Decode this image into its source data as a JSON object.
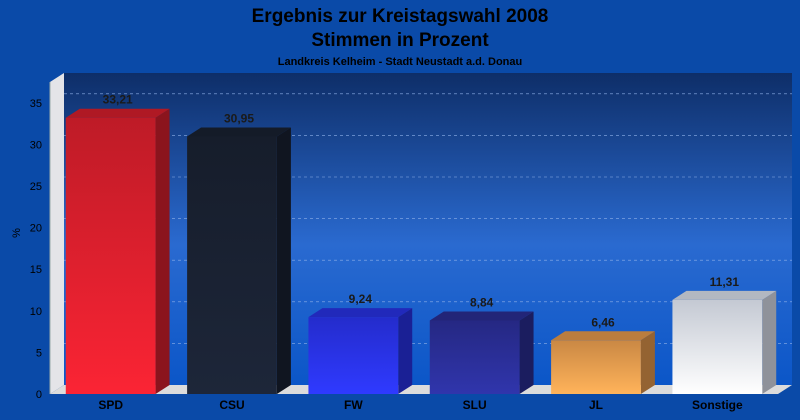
{
  "chart_data": {
    "type": "bar",
    "title": "Ergebnis zur Kreistagswahl 2008",
    "subtitle_line2": "Stimmen in Prozent",
    "subtitle": "Landkreis Kelheim - Stadt Neustadt a.d. Donau",
    "ylabel": "%",
    "xlabel": "",
    "ylim": [
      0,
      37.5
    ],
    "yticks": [
      0,
      5,
      10,
      15,
      20,
      25,
      30,
      35
    ],
    "grid": true,
    "categories": [
      "SPD",
      "CSU",
      "FW",
      "SLU",
      "JL",
      "Sonstige"
    ],
    "values": [
      33.21,
      30.95,
      9.24,
      8.84,
      6.46,
      11.31
    ],
    "value_labels": [
      "33,21",
      "30,95",
      "9,24",
      "8,84",
      "6,46",
      "11,31"
    ],
    "colors": [
      "#e0202e",
      "#1a2233",
      "#2a34f0",
      "#2b2f9a",
      "#eea050",
      "#e6ecf8"
    ]
  }
}
